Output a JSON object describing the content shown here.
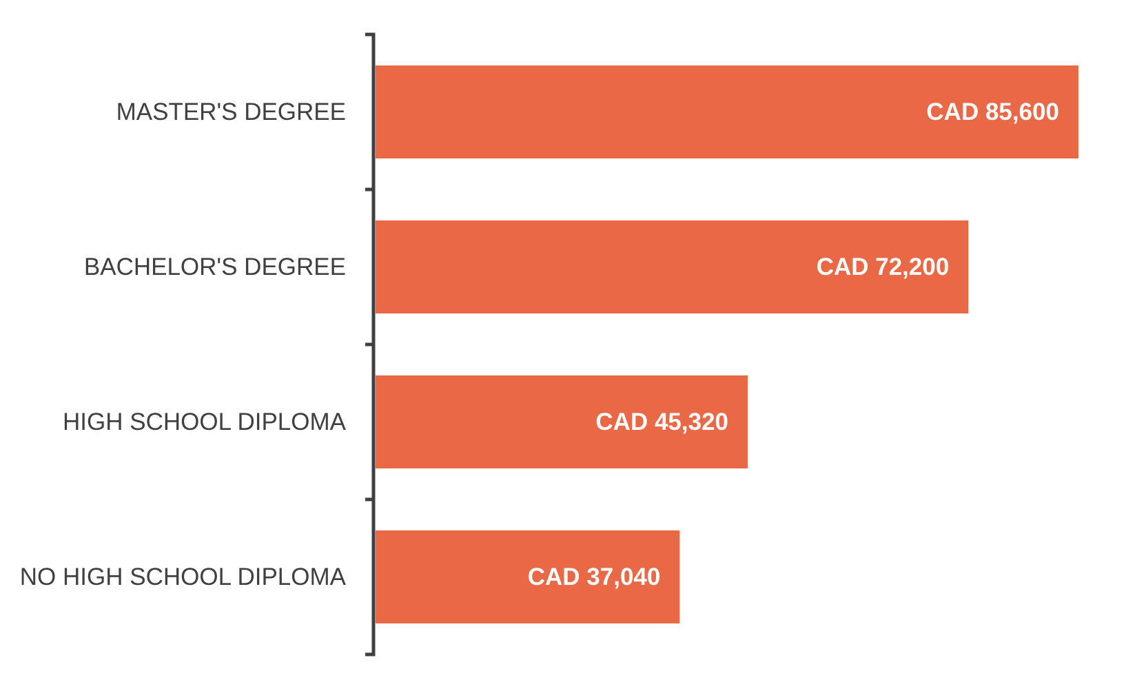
{
  "colors": {
    "bar": "#E96846",
    "axis": "#404040",
    "category_text": "#404040",
    "value_text": "#FFFFFF"
  },
  "chart_data": {
    "type": "bar",
    "orientation": "horizontal",
    "title": "",
    "xlabel": "",
    "ylabel": "",
    "categories": [
      "MASTER'S DEGREE",
      "BACHELOR'S DEGREE",
      "HIGH SCHOOL DIPLOMA",
      "NO HIGH SCHOOL DIPLOMA"
    ],
    "values": [
      85600,
      72200,
      45320,
      37040
    ],
    "value_labels": [
      "CAD 85,600",
      "CAD 72,200",
      "CAD 45,320",
      "CAD 37,040"
    ],
    "xlim": [
      0,
      85600
    ],
    "grid": false,
    "legend": "none"
  }
}
